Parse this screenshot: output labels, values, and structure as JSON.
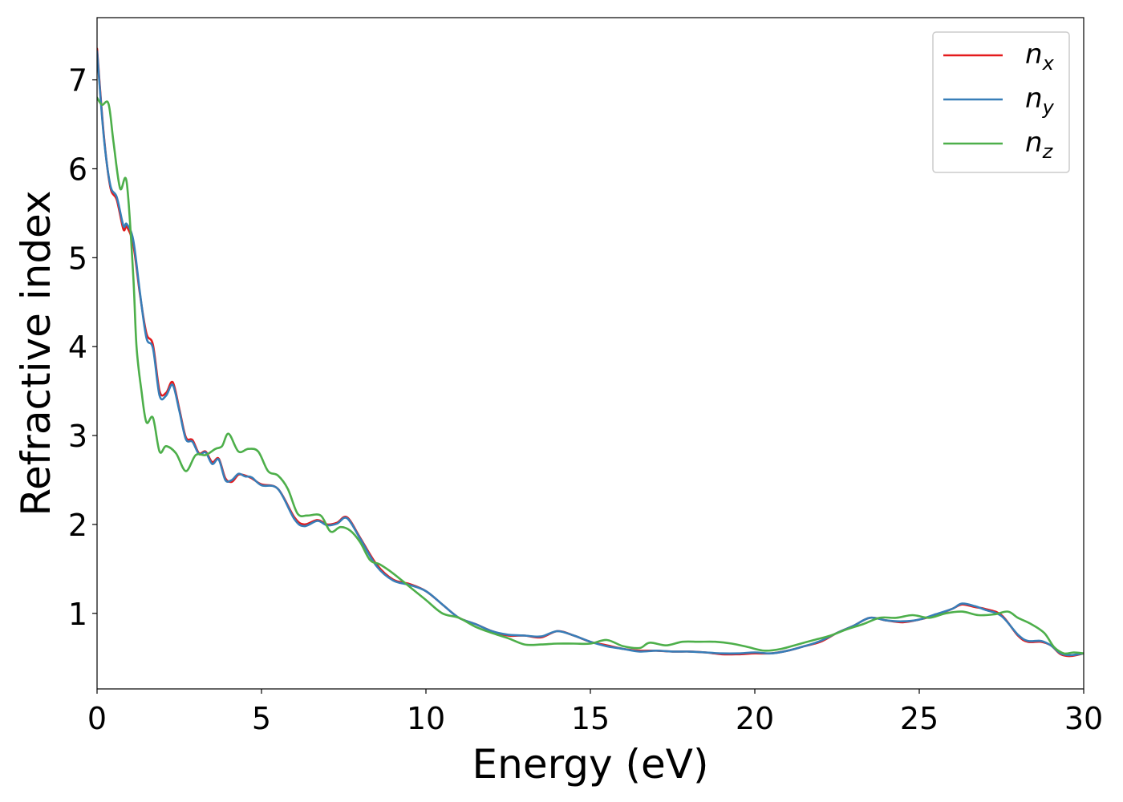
{
  "chart_data": {
    "type": "line",
    "title": "",
    "xlabel": "Energy (eV)",
    "ylabel": "Refractive index",
    "xlim": [
      0,
      30
    ],
    "ylim": [
      0.15,
      7.7
    ],
    "xticks": [
      0,
      5,
      10,
      15,
      20,
      25,
      30
    ],
    "xtick_labels": [
      "0",
      "5",
      "10",
      "15",
      "20",
      "25",
      "30"
    ],
    "yticks": [
      1,
      2,
      3,
      4,
      5,
      6,
      7
    ],
    "ytick_labels": [
      "1",
      "2",
      "3",
      "4",
      "5",
      "6",
      "7"
    ],
    "grid": false,
    "legend_position": "top-right",
    "series": [
      {
        "name": "n_x",
        "label_base": "n",
        "label_sub": "x",
        "color": "#e41a1c",
        "x": [
          0,
          0.2,
          0.4,
          0.6,
          0.8,
          0.9,
          1.1,
          1.3,
          1.5,
          1.7,
          1.9,
          2.1,
          2.3,
          2.5,
          2.7,
          2.9,
          3.1,
          3.3,
          3.5,
          3.7,
          3.9,
          4.1,
          4.3,
          4.5,
          4.7,
          5.0,
          5.5,
          6.0,
          6.3,
          6.7,
          7.0,
          7.3,
          7.6,
          8.0,
          8.5,
          9.0,
          9.5,
          10.0,
          10.5,
          11.0,
          11.5,
          12.0,
          12.5,
          13.0,
          13.5,
          14.0,
          14.5,
          15.0,
          15.5,
          16.0,
          16.5,
          17.0,
          17.5,
          18.0,
          18.5,
          19.0,
          19.5,
          20.0,
          20.5,
          21.0,
          21.5,
          22.0,
          22.5,
          23.0,
          23.5,
          24.0,
          24.5,
          25.0,
          25.5,
          26.0,
          26.3,
          26.7,
          27.0,
          27.5,
          28.0,
          28.3,
          28.7,
          29.0,
          29.3,
          29.6,
          30.0
        ],
        "y": [
          7.35,
          6.4,
          5.8,
          5.65,
          5.32,
          5.35,
          5.15,
          4.6,
          4.15,
          4.02,
          3.5,
          3.48,
          3.6,
          3.3,
          2.98,
          2.95,
          2.8,
          2.82,
          2.7,
          2.74,
          2.52,
          2.48,
          2.56,
          2.55,
          2.52,
          2.45,
          2.4,
          2.08,
          2.0,
          2.05,
          2.0,
          2.02,
          2.08,
          1.85,
          1.55,
          1.38,
          1.33,
          1.25,
          1.1,
          0.95,
          0.88,
          0.8,
          0.75,
          0.75,
          0.73,
          0.8,
          0.75,
          0.68,
          0.64,
          0.6,
          0.58,
          0.58,
          0.57,
          0.57,
          0.56,
          0.54,
          0.54,
          0.55,
          0.55,
          0.58,
          0.63,
          0.68,
          0.78,
          0.86,
          0.95,
          0.92,
          0.9,
          0.93,
          0.98,
          1.05,
          1.1,
          1.07,
          1.05,
          0.98,
          0.75,
          0.68,
          0.68,
          0.64,
          0.54,
          0.52,
          0.55
        ]
      },
      {
        "name": "n_y",
        "label_base": "n",
        "label_sub": "y",
        "color": "#377eb8",
        "x": [
          0,
          0.2,
          0.4,
          0.6,
          0.8,
          0.9,
          1.1,
          1.3,
          1.5,
          1.7,
          1.9,
          2.1,
          2.3,
          2.5,
          2.7,
          2.9,
          3.1,
          3.3,
          3.5,
          3.7,
          3.9,
          4.1,
          4.3,
          4.5,
          4.7,
          5.0,
          5.5,
          6.0,
          6.3,
          6.7,
          7.0,
          7.3,
          7.6,
          8.0,
          8.5,
          9.0,
          9.5,
          10.0,
          10.5,
          11.0,
          11.5,
          12.0,
          12.5,
          13.0,
          13.5,
          14.0,
          14.5,
          15.0,
          15.5,
          16.0,
          16.5,
          17.0,
          17.5,
          18.0,
          18.5,
          19.0,
          19.5,
          20.0,
          20.5,
          21.0,
          21.5,
          22.0,
          22.5,
          23.0,
          23.5,
          24.0,
          24.5,
          25.0,
          25.5,
          26.0,
          26.3,
          26.7,
          27.0,
          27.5,
          28.0,
          28.3,
          28.7,
          29.0,
          29.3,
          29.6,
          30.0
        ],
        "y": [
          7.32,
          6.38,
          5.82,
          5.68,
          5.36,
          5.38,
          5.2,
          4.62,
          4.1,
          3.98,
          3.45,
          3.45,
          3.57,
          3.28,
          2.96,
          2.93,
          2.79,
          2.81,
          2.68,
          2.73,
          2.5,
          2.5,
          2.57,
          2.54,
          2.53,
          2.44,
          2.4,
          2.06,
          1.98,
          2.04,
          1.99,
          2.01,
          2.07,
          1.84,
          1.53,
          1.37,
          1.32,
          1.25,
          1.1,
          0.95,
          0.88,
          0.8,
          0.76,
          0.75,
          0.74,
          0.8,
          0.75,
          0.68,
          0.63,
          0.6,
          0.57,
          0.58,
          0.57,
          0.57,
          0.56,
          0.55,
          0.55,
          0.56,
          0.55,
          0.58,
          0.63,
          0.69,
          0.78,
          0.86,
          0.95,
          0.92,
          0.91,
          0.93,
          0.99,
          1.05,
          1.11,
          1.08,
          1.04,
          0.97,
          0.76,
          0.69,
          0.69,
          0.64,
          0.55,
          0.53,
          0.55
        ]
      },
      {
        "name": "n_z",
        "label_base": "n",
        "label_sub": "z",
        "color": "#4daf4a",
        "x": [
          0,
          0.15,
          0.35,
          0.5,
          0.7,
          0.9,
          1.1,
          1.2,
          1.35,
          1.5,
          1.7,
          1.9,
          2.1,
          2.4,
          2.7,
          3.0,
          3.3,
          3.6,
          3.8,
          4.0,
          4.3,
          4.6,
          4.9,
          5.2,
          5.5,
          5.8,
          6.1,
          6.4,
          6.8,
          7.1,
          7.4,
          7.7,
          8.0,
          8.3,
          8.6,
          9.0,
          9.5,
          10.0,
          10.5,
          11.0,
          11.5,
          12.0,
          12.5,
          13.0,
          13.5,
          14.0,
          14.5,
          15.0,
          15.5,
          16.0,
          16.5,
          16.8,
          17.3,
          17.8,
          18.3,
          18.8,
          19.3,
          19.8,
          20.3,
          20.8,
          21.3,
          21.8,
          22.3,
          22.8,
          23.3,
          23.8,
          24.3,
          24.8,
          25.3,
          25.8,
          26.3,
          26.8,
          27.3,
          27.7,
          28.0,
          28.4,
          28.8,
          29.1,
          29.4,
          29.7,
          30.0
        ],
        "y": [
          6.8,
          6.72,
          6.73,
          6.3,
          5.78,
          5.85,
          4.8,
          4.0,
          3.5,
          3.15,
          3.2,
          2.82,
          2.88,
          2.8,
          2.6,
          2.78,
          2.78,
          2.85,
          2.88,
          3.02,
          2.82,
          2.85,
          2.82,
          2.6,
          2.55,
          2.4,
          2.12,
          2.1,
          2.1,
          1.92,
          1.97,
          1.93,
          1.8,
          1.6,
          1.55,
          1.45,
          1.3,
          1.15,
          1.0,
          0.95,
          0.85,
          0.78,
          0.72,
          0.65,
          0.65,
          0.66,
          0.66,
          0.66,
          0.7,
          0.63,
          0.61,
          0.67,
          0.64,
          0.68,
          0.68,
          0.68,
          0.66,
          0.62,
          0.58,
          0.6,
          0.65,
          0.7,
          0.75,
          0.82,
          0.88,
          0.95,
          0.95,
          0.98,
          0.95,
          1.0,
          1.02,
          0.98,
          0.99,
          1.02,
          0.95,
          0.88,
          0.78,
          0.62,
          0.55,
          0.56,
          0.55
        ]
      }
    ]
  }
}
